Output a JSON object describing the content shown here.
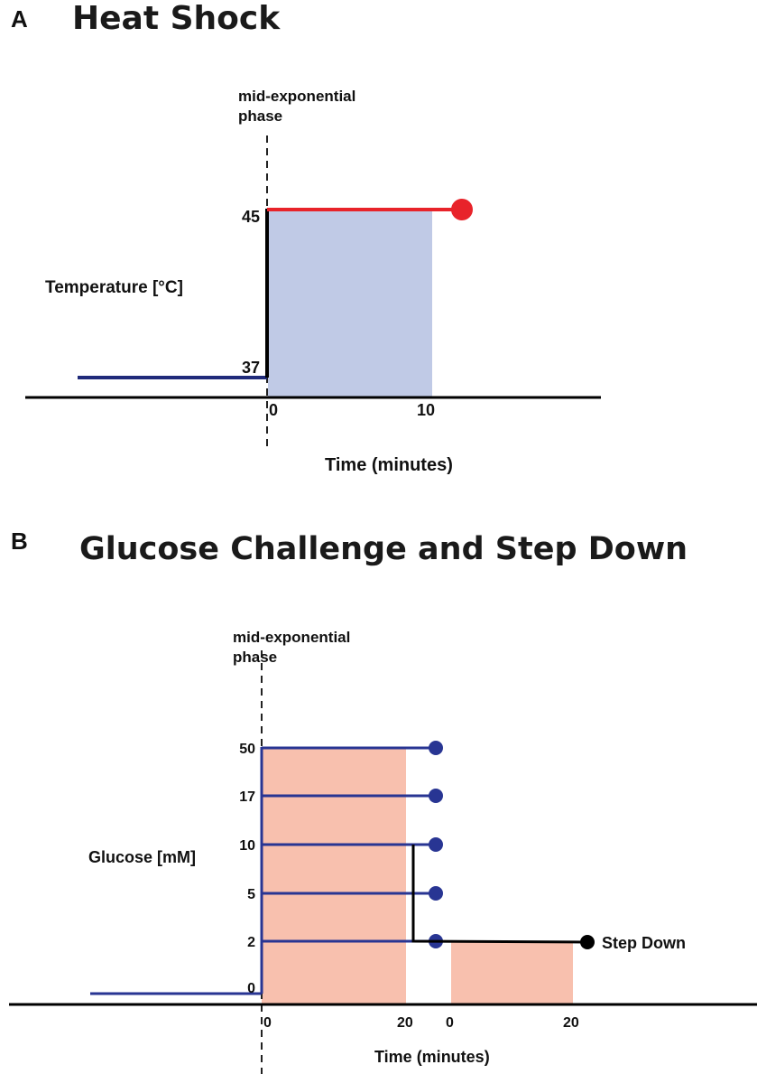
{
  "colors": {
    "axis": "#000000",
    "baseline": "#1f2a7a",
    "heat_line": "#e8232a",
    "heat_shade": "#c0cae6",
    "glucose_line": "#283593",
    "glucose_shade": "#f8c0ae",
    "step_down": "#000000"
  },
  "panel_a": {
    "letter": "A",
    "title": "Heat Shock",
    "phase_label_line1": "mid-exponential",
    "phase_label_line2": "phase",
    "y_label": "Temperature [°C]",
    "x_label": "Time (minutes)",
    "y_ticks": [
      "45",
      "37"
    ],
    "x_ticks": [
      "0",
      "10"
    ]
  },
  "panel_b": {
    "letter": "B",
    "title": "Glucose Challenge and Step Down",
    "phase_label_line1": "mid-exponential",
    "phase_label_line2": "phase",
    "y_label": "Glucose [mM]",
    "x_label": "Time (minutes)",
    "y_ticks": [
      "50",
      "17",
      "10",
      "5",
      "2",
      "0"
    ],
    "x_ticks_first": [
      "0",
      "20"
    ],
    "x_ticks_second": [
      "0",
      "20"
    ],
    "step_down_label": "Step Down"
  }
}
